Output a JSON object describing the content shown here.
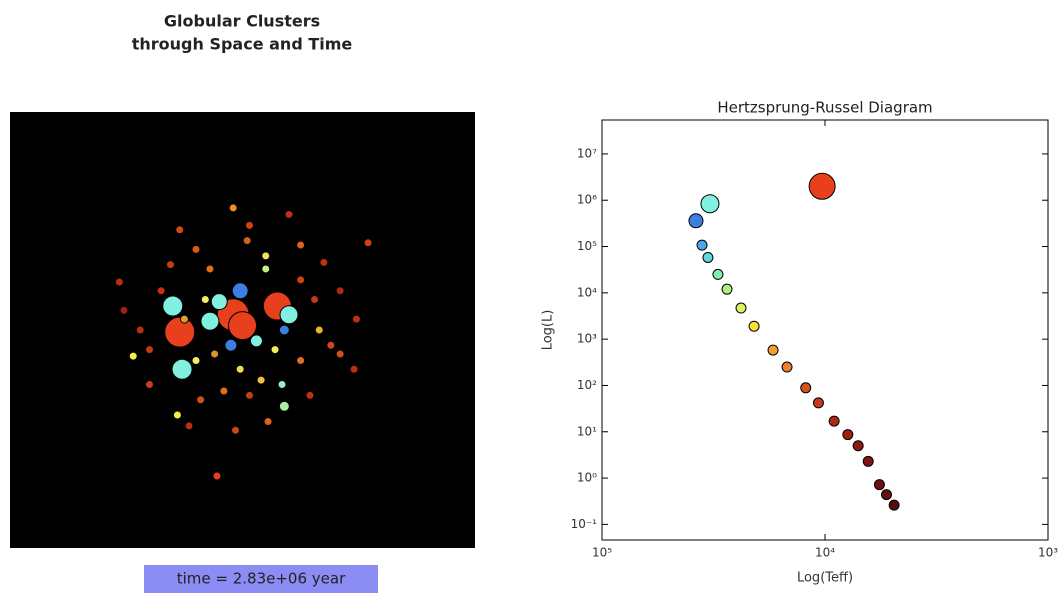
{
  "chart_data": [
    {
      "type": "scatter",
      "title": [
        "Globular Clusters",
        "through Space and Time"
      ],
      "annotation": "time = 2.83e+06 year",
      "background": "#000000",
      "annotation_color": "#8c8cf5",
      "xlim": [
        -1,
        1
      ],
      "ylim": [
        -1,
        1
      ],
      "x": [
        -0.27,
        0.15,
        -0.04,
        0.0,
        -0.3,
        -0.26,
        -0.14,
        -0.1,
        0.2,
        -0.01,
        -0.05,
        0.18,
        0.06,
        -0.11,
        -0.47,
        -0.28,
        0.18,
        0.17,
        0.11,
        0.54,
        -0.04,
        0.48,
        0.35,
        0.38,
        -0.53,
        -0.4,
        -0.18,
        0.08,
        -0.2,
        -0.14,
        0.1,
        0.02,
        0.25,
        0.31,
        -0.35,
        -0.44,
        -0.2,
        -0.31,
        -0.08,
        0.03,
        0.25,
        0.33,
        -0.16,
        0.1,
        0.14,
        0.03,
        0.2,
        0.42,
        0.49,
        -0.51,
        -0.4,
        -0.23,
        -0.03,
        0.29,
        0.42,
        -0.12,
        -0.01,
        -0.25,
        0.25,
        -0.27
      ],
      "values": [
        -0.01,
        0.11,
        0.07,
        0.02,
        0.11,
        -0.18,
        0.04,
        0.13,
        0.07,
        0.18,
        -0.07,
        0.0,
        -0.05,
        -0.67,
        -0.12,
        -0.39,
        -0.35,
        -0.25,
        -0.42,
        0.4,
        0.56,
        -0.18,
        0.31,
        -0.07,
        0.22,
        -0.25,
        -0.32,
        -0.23,
        -0.14,
        0.28,
        0.34,
        0.41,
        0.23,
        0.14,
        0.18,
        0.0,
        0.37,
        0.3,
        -0.28,
        -0.3,
        -0.14,
        0.0,
        0.14,
        0.28,
        -0.09,
        0.48,
        0.53,
        0.18,
        0.05,
        0.09,
        -0.09,
        -0.44,
        -0.46,
        -0.3,
        -0.11,
        -0.11,
        -0.18,
        0.05,
        0.39,
        0.46
      ],
      "sizes": [
        15,
        14,
        16,
        14,
        10,
        10,
        9,
        8,
        9,
        8,
        6,
        5,
        6,
        4,
        4,
        4,
        5,
        4,
        4,
        4,
        4,
        4,
        4,
        4,
        4,
        4,
        4,
        4,
        4,
        4,
        4,
        4,
        4,
        4,
        4,
        4,
        4,
        4,
        4,
        4,
        4,
        4,
        4,
        4,
        4,
        4,
        4,
        4,
        4,
        4,
        4,
        4,
        4,
        4,
        4,
        4,
        4,
        4,
        4,
        4
      ],
      "colors": [
        "#e8401c",
        "#e8401c",
        "#e8401c",
        "#e8401c",
        "#80f0e0",
        "#80f0e0",
        "#80f0e0",
        "#80f0e0",
        "#80f0e0",
        "#3c7fe0",
        "#3c7fe0",
        "#3c7fe0",
        "#80f0e0",
        "#e8401c",
        "#f0f040",
        "#f0f040",
        "#a8f0a0",
        "#90f0d0",
        "#e06020",
        "#d04010",
        "#f09020",
        "#b83010",
        "#c03010",
        "#d04818",
        "#b83010",
        "#c84018",
        "#d05018",
        "#f0c040",
        "#f0f060",
        "#e07020",
        "#f0e060",
        "#d06020",
        "#d04010",
        "#c83818",
        "#c83010",
        "#b83010",
        "#e05818",
        "#c04010",
        "#e07020",
        "#c04010",
        "#e07020",
        "#f0b030",
        "#f0f060",
        "#c0f080",
        "#f0f060",
        "#d04010",
        "#c03010",
        "#b02810",
        "#c03010",
        "#a02010",
        "#c03818",
        "#b83010",
        "#c84818",
        "#c03010",
        "#d05018",
        "#e09030",
        "#f0e050",
        "#e0a030",
        "#e06020",
        "#d04818"
      ]
    },
    {
      "type": "scatter",
      "title": "Hertzsprung-Russel Diagram",
      "xlabel": "Log(Teff)",
      "ylabel": "Log(L)",
      "xscale": "log",
      "yscale": "log",
      "xlim": [
        100000,
        1000
      ],
      "ylim": [
        0.046,
        54000000
      ],
      "xticks": [
        {
          "value": 100000,
          "label": "10⁵"
        },
        {
          "value": 10000,
          "label": "10⁴"
        },
        {
          "value": 1000,
          "label": "10³"
        }
      ],
      "yticks": [
        {
          "value": 0.1,
          "label": "10⁻¹"
        },
        {
          "value": 1,
          "label": "10⁰"
        },
        {
          "value": 10,
          "label": "10¹"
        },
        {
          "value": 100,
          "label": "10²"
        },
        {
          "value": 1000,
          "label": "10³"
        },
        {
          "value": 10000,
          "label": "10⁴"
        },
        {
          "value": 100000,
          "label": "10⁵"
        },
        {
          "value": 1000000,
          "label": "10⁶"
        },
        {
          "value": 10000000,
          "label": "10⁷"
        }
      ],
      "x": [
        10300,
        32800,
        37900,
        35600,
        33500,
        30200,
        27500,
        23800,
        20800,
        17100,
        14800,
        12200,
        10700,
        9100,
        7900,
        7100,
        6400,
        5700,
        5300,
        4900
      ],
      "values": [
        2000000,
        840000,
        360000,
        107000,
        58000,
        25000,
        12000,
        4700,
        1900,
        580,
        250,
        89,
        42,
        17,
        8.7,
        5.0,
        2.3,
        0.72,
        0.44,
        0.26
      ],
      "sizes": [
        13,
        9,
        7,
        5,
        5,
        5,
        5,
        5,
        5,
        5,
        5,
        5,
        5,
        5,
        5,
        5,
        5,
        5,
        5,
        5
      ],
      "colors": [
        "#e8401c",
        "#80f0e0",
        "#3c7fe0",
        "#4aa8e8",
        "#60d8e0",
        "#80f0b0",
        "#a8f080",
        "#e0f060",
        "#ffe030",
        "#f0a030",
        "#e88030",
        "#d85020",
        "#c83820",
        "#b02818",
        "#a02010",
        "#901810",
        "#801410",
        "#701010",
        "#601010",
        "#500c0c"
      ]
    }
  ]
}
